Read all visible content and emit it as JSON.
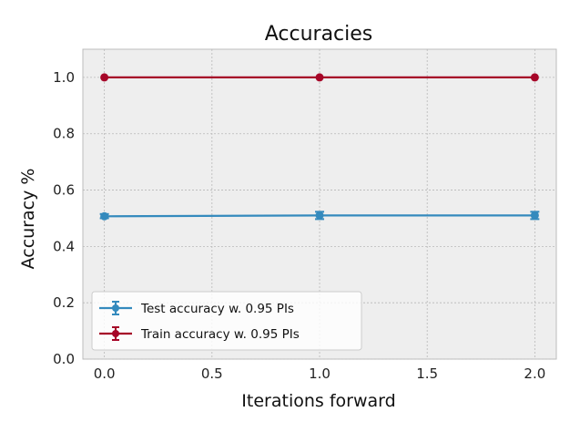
{
  "chart_data": {
    "type": "line",
    "title": "Accuracies",
    "xlabel": "Iterations forward",
    "ylabel": "Accuracy %",
    "xlim": [
      -0.1,
      2.1
    ],
    "ylim": [
      0.0,
      1.1
    ],
    "xticks": [
      0.0,
      0.5,
      1.0,
      1.5,
      2.0
    ],
    "xtick_labels": [
      "0.0",
      "0.5",
      "1.0",
      "1.5",
      "2.0"
    ],
    "yticks": [
      0.0,
      0.2,
      0.4,
      0.6,
      0.8,
      1.0
    ],
    "ytick_labels": [
      "0.0",
      "0.2",
      "0.4",
      "0.6",
      "0.8",
      "1.0"
    ],
    "grid": true,
    "legend_position": "lower-left",
    "x": [
      0.0,
      1.0,
      2.0
    ],
    "series": [
      {
        "name": "Test accuracy w. 0.95 PIs",
        "color": "#348abd",
        "values": [
          0.507,
          0.51,
          0.51
        ],
        "lower": [
          0.5,
          0.497,
          0.497
        ],
        "upper": [
          0.515,
          0.523,
          0.523
        ]
      },
      {
        "name": "Train accuracy w. 0.95 PIs",
        "color": "#a60628",
        "values": [
          1.0,
          1.0,
          1.0
        ],
        "lower": [
          1.0,
          1.0,
          1.0
        ],
        "upper": [
          1.0,
          1.0,
          1.0
        ]
      }
    ]
  },
  "colors": {
    "plot_background": "#eeeeee",
    "grid": "#b8b8b8",
    "axes_edge": "#bcbcbc"
  }
}
